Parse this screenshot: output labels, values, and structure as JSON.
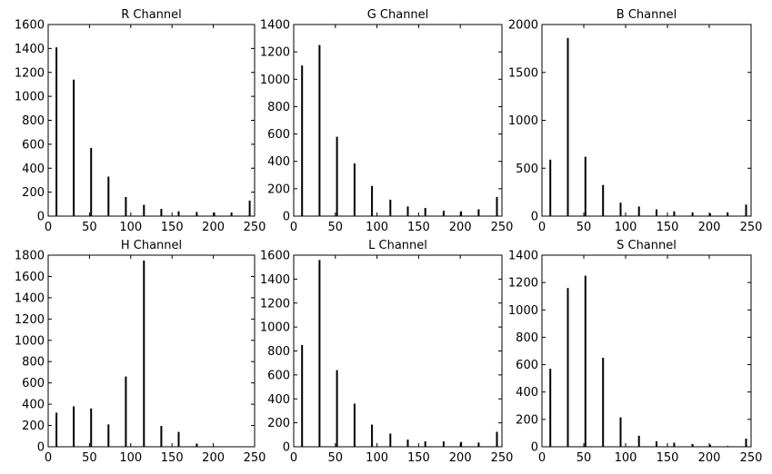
{
  "chart_data": [
    {
      "type": "bar",
      "title": "R Channel",
      "xlim": [
        0,
        250
      ],
      "ylim": [
        0,
        1600
      ],
      "xticks": [
        "0",
        "50",
        "100",
        "150",
        "200",
        "250"
      ],
      "yticks": [
        "0",
        "200",
        "400",
        "600",
        "800",
        "1000",
        "1200",
        "1400",
        "1600"
      ],
      "x": [
        10,
        31,
        52,
        73,
        94,
        116,
        137,
        158,
        180,
        201,
        222,
        244
      ],
      "values": [
        1410,
        1140,
        570,
        330,
        160,
        95,
        60,
        40,
        35,
        30,
        30,
        130
      ]
    },
    {
      "type": "bar",
      "title": "G Channel",
      "xlim": [
        0,
        250
      ],
      "ylim": [
        0,
        1400
      ],
      "xticks": [
        "0",
        "50",
        "100",
        "150",
        "200",
        "250"
      ],
      "yticks": [
        "0",
        "200",
        "400",
        "600",
        "800",
        "1000",
        "1200",
        "1400"
      ],
      "x": [
        10,
        31,
        52,
        73,
        94,
        116,
        137,
        158,
        180,
        201,
        222,
        244
      ],
      "values": [
        1100,
        1250,
        580,
        385,
        220,
        120,
        70,
        60,
        40,
        35,
        50,
        140
      ]
    },
    {
      "type": "bar",
      "title": "B Channel",
      "xlim": [
        0,
        250
      ],
      "ylim": [
        0,
        2000
      ],
      "xticks": [
        "0",
        "50",
        "100",
        "150",
        "200",
        "250"
      ],
      "yticks": [
        "0",
        "500",
        "1000",
        "1500",
        "2000"
      ],
      "x": [
        10,
        31,
        52,
        73,
        94,
        116,
        137,
        158,
        180,
        201,
        222,
        244
      ],
      "values": [
        590,
        1860,
        620,
        325,
        140,
        100,
        70,
        50,
        40,
        30,
        40,
        120
      ]
    },
    {
      "type": "bar",
      "title": "H Channel",
      "xlim": [
        0,
        250
      ],
      "ylim": [
        0,
        1800
      ],
      "xticks": [
        "0",
        "50",
        "100",
        "150",
        "200",
        "250"
      ],
      "yticks": [
        "0",
        "200",
        "400",
        "600",
        "800",
        "1000",
        "1200",
        "1400",
        "1600",
        "1800"
      ],
      "x": [
        10,
        31,
        52,
        73,
        94,
        116,
        137,
        158,
        180,
        201,
        222,
        244
      ],
      "values": [
        320,
        380,
        360,
        210,
        660,
        1750,
        195,
        140,
        30,
        5,
        0,
        0
      ]
    },
    {
      "type": "bar",
      "title": "L Channel",
      "xlim": [
        0,
        250
      ],
      "ylim": [
        0,
        1600
      ],
      "xticks": [
        "0",
        "50",
        "100",
        "150",
        "200",
        "250"
      ],
      "yticks": [
        "0",
        "200",
        "400",
        "600",
        "800",
        "1000",
        "1200",
        "1400",
        "1600"
      ],
      "x": [
        10,
        31,
        52,
        73,
        94,
        116,
        137,
        158,
        180,
        201,
        222,
        244
      ],
      "values": [
        850,
        1560,
        640,
        360,
        185,
        110,
        60,
        45,
        45,
        40,
        35,
        125
      ]
    },
    {
      "type": "bar",
      "title": "S Channel",
      "xlim": [
        0,
        250
      ],
      "ylim": [
        0,
        1400
      ],
      "xticks": [
        "0",
        "50",
        "100",
        "150",
        "200",
        "250"
      ],
      "yticks": [
        "0",
        "200",
        "400",
        "600",
        "800",
        "1000",
        "1200",
        "1400"
      ],
      "x": [
        10,
        31,
        52,
        73,
        94,
        116,
        137,
        158,
        180,
        201,
        222,
        244
      ],
      "values": [
        570,
        1160,
        1250,
        650,
        215,
        80,
        40,
        30,
        20,
        15,
        5,
        60
      ]
    }
  ],
  "style": {
    "bar_color": "#000000",
    "axes_color": "#000000",
    "background": "#ffffff"
  }
}
